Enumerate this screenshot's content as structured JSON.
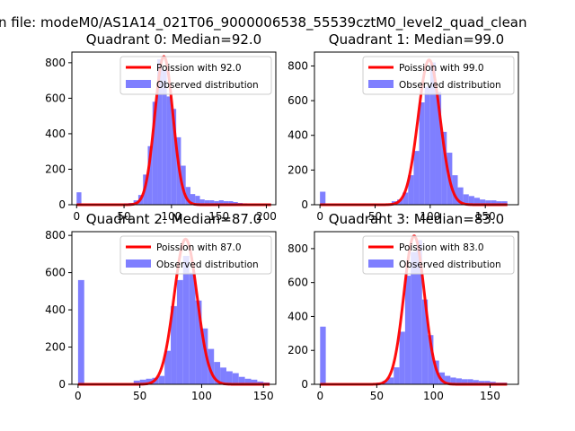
{
  "suptitle": "n file: modeM0/AS1A14_021T06_9000006538_55539cztM0_level2_quad_clean",
  "colors": {
    "poisson": "#ff0000",
    "observed": "#7f7fff",
    "axes": "#000000"
  },
  "chart_data": [
    {
      "type": "bar",
      "title": "Quadrant 0: Median=92.0",
      "xlim": [
        -5,
        210
      ],
      "ylim": [
        0,
        860
      ],
      "xticks": [
        0,
        50,
        100,
        150,
        200
      ],
      "yticks": [
        0,
        200,
        400,
        600,
        800
      ],
      "bin_width": 5,
      "observed": {
        "name": "Observed distribution",
        "bins": [
          [
            0,
            70
          ],
          [
            5,
            5
          ],
          [
            10,
            5
          ],
          [
            15,
            5
          ],
          [
            20,
            5
          ],
          [
            25,
            5
          ],
          [
            30,
            5
          ],
          [
            35,
            5
          ],
          [
            40,
            5
          ],
          [
            45,
            5
          ],
          [
            50,
            8
          ],
          [
            55,
            10
          ],
          [
            60,
            25
          ],
          [
            65,
            55
          ],
          [
            70,
            170
          ],
          [
            75,
            330
          ],
          [
            80,
            580
          ],
          [
            85,
            820
          ],
          [
            90,
            760
          ],
          [
            95,
            610
          ],
          [
            100,
            540
          ],
          [
            105,
            380
          ],
          [
            110,
            220
          ],
          [
            115,
            100
          ],
          [
            120,
            60
          ],
          [
            125,
            50
          ],
          [
            130,
            30
          ],
          [
            135,
            25
          ],
          [
            140,
            25
          ],
          [
            145,
            20
          ],
          [
            150,
            25
          ],
          [
            155,
            20
          ],
          [
            160,
            20
          ],
          [
            165,
            15
          ],
          [
            170,
            10
          ],
          [
            175,
            8
          ],
          [
            180,
            5
          ],
          [
            185,
            5
          ],
          [
            190,
            5
          ],
          [
            195,
            5
          ],
          [
            200,
            5
          ]
        ]
      },
      "poisson": {
        "name": "Poission with 92.0",
        "lambda": 92.0,
        "peak": 835,
        "x_range": [
          0,
          205
        ]
      }
    },
    {
      "type": "bar",
      "title": "Quadrant 1: Median=99.0",
      "xlim": [
        -5,
        180
      ],
      "ylim": [
        0,
        880
      ],
      "xticks": [
        0,
        50,
        100,
        150
      ],
      "yticks": [
        0,
        200,
        400,
        600,
        800
      ],
      "bin_width": 5,
      "observed": {
        "name": "Observed distribution",
        "bins": [
          [
            0,
            75
          ],
          [
            5,
            5
          ],
          [
            10,
            5
          ],
          [
            15,
            5
          ],
          [
            20,
            5
          ],
          [
            25,
            5
          ],
          [
            30,
            5
          ],
          [
            35,
            5
          ],
          [
            40,
            5
          ],
          [
            45,
            5
          ],
          [
            50,
            5
          ],
          [
            55,
            5
          ],
          [
            60,
            5
          ],
          [
            65,
            20
          ],
          [
            70,
            30
          ],
          [
            75,
            70
          ],
          [
            80,
            170
          ],
          [
            85,
            310
          ],
          [
            90,
            590
          ],
          [
            95,
            680
          ],
          [
            100,
            820
          ],
          [
            105,
            650
          ],
          [
            110,
            420
          ],
          [
            115,
            300
          ],
          [
            120,
            170
          ],
          [
            125,
            100
          ],
          [
            130,
            60
          ],
          [
            135,
            50
          ],
          [
            140,
            40
          ],
          [
            145,
            30
          ],
          [
            150,
            25
          ],
          [
            155,
            25
          ],
          [
            160,
            20
          ],
          [
            165,
            20
          ]
        ]
      },
      "poisson": {
        "name": "Poission with 99.0",
        "lambda": 99.0,
        "peak": 835,
        "x_range": [
          0,
          170
        ]
      }
    },
    {
      "type": "bar",
      "title": "Quadrant 2: Median=87.0",
      "xlim": [
        -5,
        160
      ],
      "ylim": [
        0,
        820
      ],
      "xticks": [
        0,
        50,
        100,
        150
      ],
      "yticks": [
        0,
        200,
        400,
        600,
        800
      ],
      "bin_width": 5,
      "observed": {
        "name": "Observed distribution",
        "bins": [
          [
            0,
            560
          ],
          [
            5,
            5
          ],
          [
            10,
            5
          ],
          [
            15,
            5
          ],
          [
            20,
            5
          ],
          [
            25,
            5
          ],
          [
            30,
            5
          ],
          [
            35,
            5
          ],
          [
            40,
            5
          ],
          [
            45,
            20
          ],
          [
            50,
            25
          ],
          [
            55,
            30
          ],
          [
            60,
            35
          ],
          [
            65,
            45
          ],
          [
            70,
            180
          ],
          [
            75,
            420
          ],
          [
            80,
            560
          ],
          [
            85,
            690
          ],
          [
            90,
            600
          ],
          [
            95,
            450
          ],
          [
            100,
            300
          ],
          [
            105,
            190
          ],
          [
            110,
            120
          ],
          [
            115,
            90
          ],
          [
            120,
            70
          ],
          [
            125,
            60
          ],
          [
            130,
            40
          ],
          [
            135,
            30
          ],
          [
            140,
            25
          ],
          [
            145,
            15
          ],
          [
            150,
            10
          ]
        ]
      },
      "poisson": {
        "name": "Poission with 87.0",
        "lambda": 87.0,
        "peak": 780,
        "x_range": [
          0,
          155
        ]
      }
    },
    {
      "type": "bar",
      "title": "Quadrant 3: Median=83.0",
      "xlim": [
        -5,
        175
      ],
      "ylim": [
        0,
        900
      ],
      "xticks": [
        0,
        50,
        100,
        150
      ],
      "yticks": [
        0,
        200,
        400,
        600,
        800
      ],
      "bin_width": 5,
      "observed": {
        "name": "Observed distribution",
        "bins": [
          [
            0,
            340
          ],
          [
            5,
            5
          ],
          [
            10,
            5
          ],
          [
            15,
            5
          ],
          [
            20,
            5
          ],
          [
            25,
            5
          ],
          [
            30,
            5
          ],
          [
            35,
            5
          ],
          [
            40,
            5
          ],
          [
            45,
            5
          ],
          [
            50,
            10
          ],
          [
            55,
            20
          ],
          [
            60,
            40
          ],
          [
            65,
            100
          ],
          [
            70,
            310
          ],
          [
            75,
            640
          ],
          [
            80,
            780
          ],
          [
            85,
            850
          ],
          [
            90,
            500
          ],
          [
            95,
            290
          ],
          [
            100,
            140
          ],
          [
            105,
            70
          ],
          [
            110,
            50
          ],
          [
            115,
            40
          ],
          [
            120,
            35
          ],
          [
            125,
            30
          ],
          [
            130,
            30
          ],
          [
            135,
            25
          ],
          [
            140,
            20
          ],
          [
            145,
            20
          ],
          [
            150,
            15
          ],
          [
            155,
            10
          ],
          [
            160,
            10
          ]
        ]
      },
      "poisson": {
        "name": "Poission with 83.0",
        "lambda": 83.0,
        "peak": 875,
        "x_range": [
          0,
          165
        ]
      }
    }
  ]
}
